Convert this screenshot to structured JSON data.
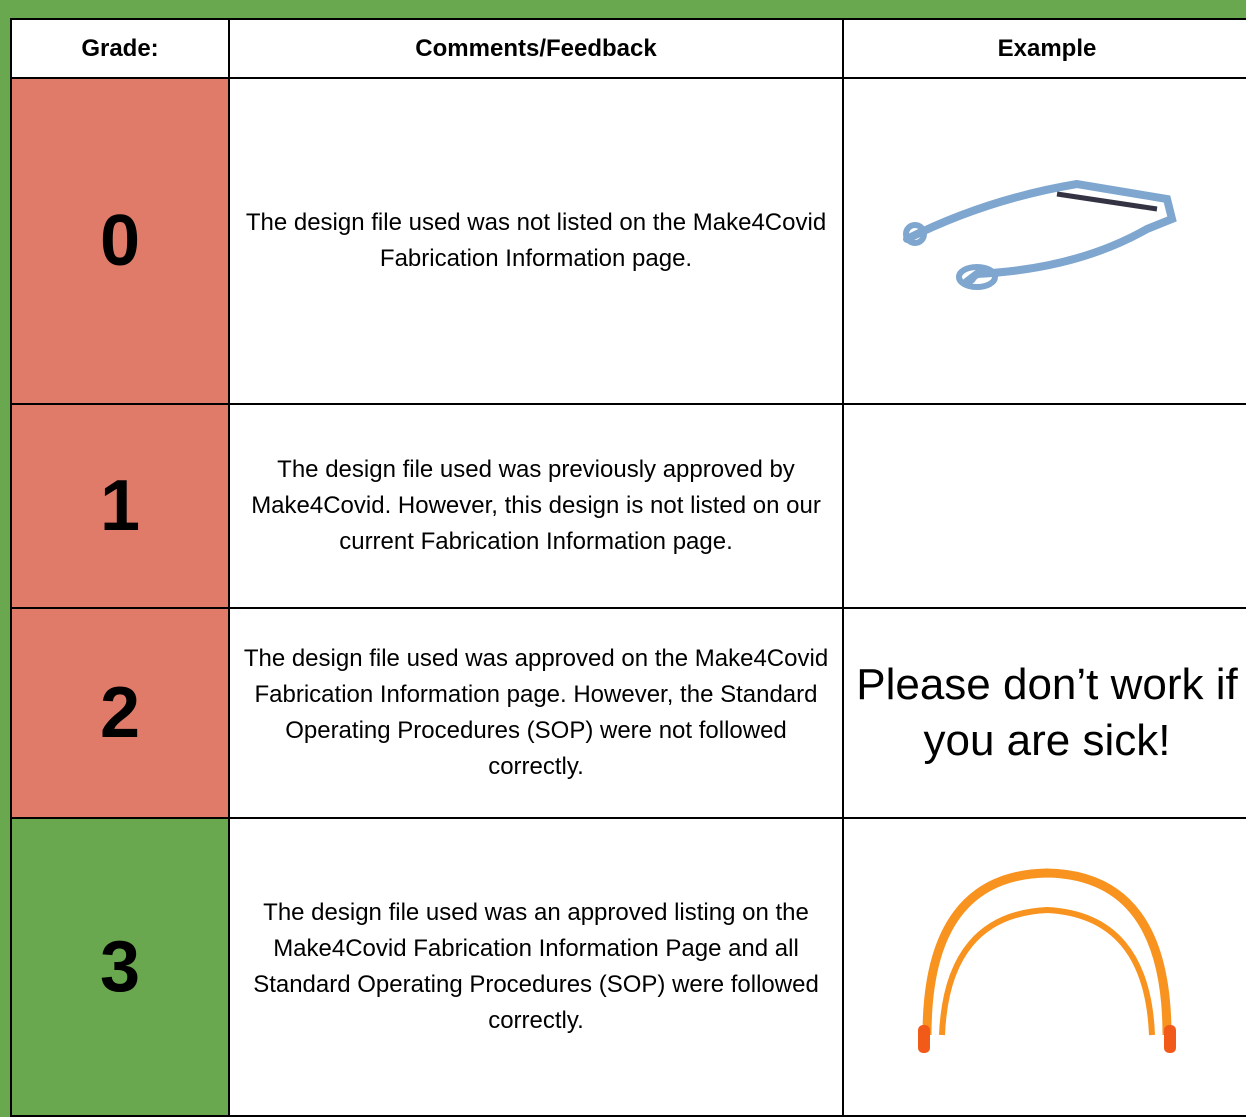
{
  "table": {
    "header": [
      "Grade:",
      "Comments/Feedback",
      "Example"
    ],
    "rows": [
      {
        "grade": "0",
        "comment": "The design file used was not listed on the Make4Covid Fabrication Information page."
      },
      {
        "grade": "1",
        "comment": "The design file used was previously approved by Make4Covid. However, this design is not listed on our current Fabrication Information page."
      },
      {
        "grade": "2",
        "comment": "The design file used was approved on the Make4Covid Fabrication Information page. However, the Standard Operating Procedures (SOP) were not followed correctly.",
        "example": "Please don’t work if you are sick!"
      },
      {
        "grade": "3",
        "comment": "The design file used was an approved listing on the Make4Covid Fabrication Information Page and all Standard Operating Procedures (SOP) were followed correctly."
      }
    ]
  }
}
